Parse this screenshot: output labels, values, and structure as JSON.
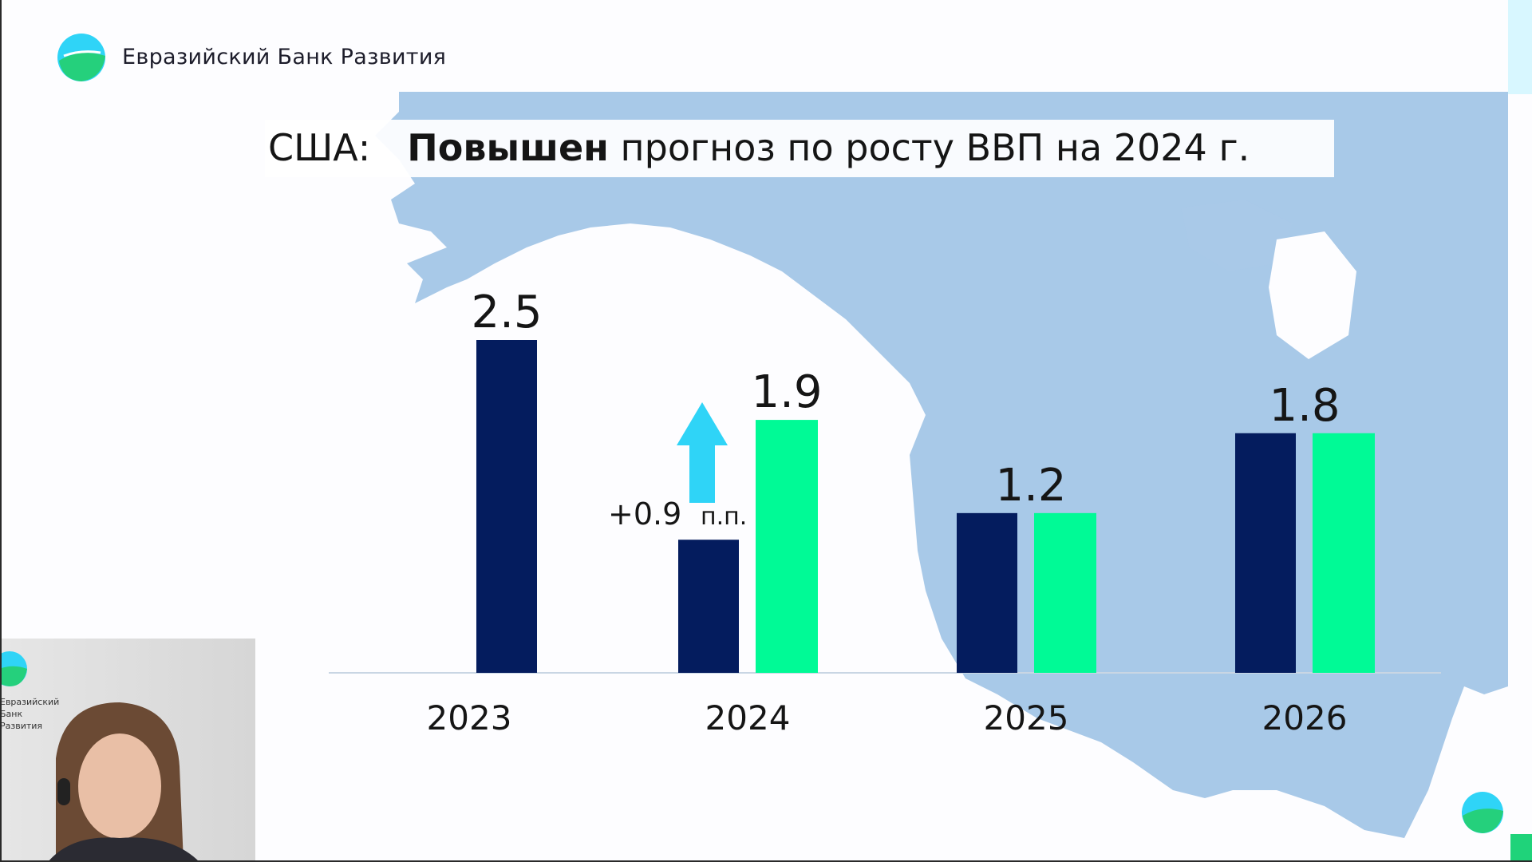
{
  "brand": {
    "name": "Евразийский Банк Развития",
    "video_logo_text": "Евразийский Банк Развития"
  },
  "title": {
    "country": "США:",
    "bold": "Повышен",
    "rest": "прогноз по росту ВВП на 2024 г."
  },
  "colors": {
    "previous_forecast": "#041c5e",
    "new_forecast": "#00fa96",
    "arrow": "#2fd4f7",
    "map": "#a8c9e8"
  },
  "chart_data": {
    "type": "bar",
    "categories": [
      "2023",
      "2024",
      "2025",
      "2026"
    ],
    "series": [
      {
        "values": [
          2.5,
          1.0,
          1.2,
          1.8
        ]
      },
      {
        "values": [
          null,
          1.9,
          1.2,
          1.8
        ]
      }
    ],
    "data_labels": [
      "2.5",
      "1.9",
      "1.2",
      "1.8"
    ],
    "annotation": {
      "text": "+0.9",
      "unit": "п.п.",
      "category": "2024"
    },
    "ylim": [
      0,
      2.5
    ],
    "grid": false,
    "legend": "none"
  }
}
